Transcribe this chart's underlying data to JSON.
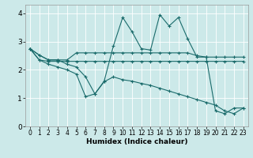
{
  "xlabel": "Humidex (Indice chaleur)",
  "xlim": [
    -0.5,
    23.5
  ],
  "ylim": [
    0,
    4.3
  ],
  "xticks": [
    0,
    1,
    2,
    3,
    4,
    5,
    6,
    7,
    8,
    9,
    10,
    11,
    12,
    13,
    14,
    15,
    16,
    17,
    18,
    19,
    20,
    21,
    22,
    23
  ],
  "yticks": [
    0,
    1,
    2,
    3,
    4
  ],
  "background_color": "#cce9e9",
  "line_color": "#1a6b6b",
  "series": [
    {
      "x": [
        0,
        1,
        2,
        3,
        4,
        5,
        6,
        7,
        8,
        9,
        10,
        11,
        12,
        13,
        14,
        15,
        16,
        17,
        18,
        19,
        20,
        21,
        22,
        23
      ],
      "y": [
        2.75,
        2.52,
        2.35,
        2.35,
        2.35,
        2.6,
        2.6,
        2.6,
        2.6,
        2.6,
        2.6,
        2.6,
        2.6,
        2.6,
        2.6,
        2.6,
        2.6,
        2.6,
        2.5,
        2.45,
        2.45,
        2.45,
        2.45,
        2.45
      ]
    },
    {
      "x": [
        0,
        1,
        2,
        3,
        4,
        5,
        6,
        7,
        8,
        9,
        10,
        11,
        12,
        13,
        14,
        15,
        16,
        17,
        18,
        19,
        20,
        21,
        22,
        23
      ],
      "y": [
        2.75,
        2.35,
        2.3,
        2.3,
        2.3,
        2.3,
        2.3,
        2.3,
        2.3,
        2.3,
        2.3,
        2.3,
        2.3,
        2.3,
        2.3,
        2.3,
        2.3,
        2.3,
        2.3,
        2.3,
        2.3,
        2.3,
        2.3,
        2.3
      ]
    },
    {
      "x": [
        0,
        1,
        2,
        3,
        4,
        5,
        6,
        7,
        8,
        9,
        10,
        11,
        12,
        13,
        14,
        15,
        16,
        17,
        18,
        19,
        20,
        21,
        22,
        23
      ],
      "y": [
        2.75,
        2.35,
        2.2,
        2.1,
        2.0,
        1.85,
        1.05,
        1.15,
        1.58,
        1.75,
        1.65,
        1.6,
        1.52,
        1.45,
        1.35,
        1.25,
        1.15,
        1.05,
        0.95,
        0.85,
        0.75,
        0.55,
        0.45,
        0.65
      ]
    },
    {
      "x": [
        0,
        1,
        2,
        3,
        4,
        5,
        6,
        7,
        8,
        9,
        10,
        11,
        12,
        13,
        14,
        15,
        16,
        17,
        18,
        19,
        20,
        21,
        22,
        23
      ],
      "y": [
        2.75,
        2.52,
        2.35,
        2.35,
        2.2,
        2.1,
        1.75,
        1.15,
        1.6,
        2.85,
        3.85,
        3.35,
        2.75,
        2.7,
        3.95,
        3.55,
        3.85,
        3.1,
        2.45,
        2.45,
        0.55,
        0.45,
        0.65,
        0.65
      ]
    }
  ]
}
